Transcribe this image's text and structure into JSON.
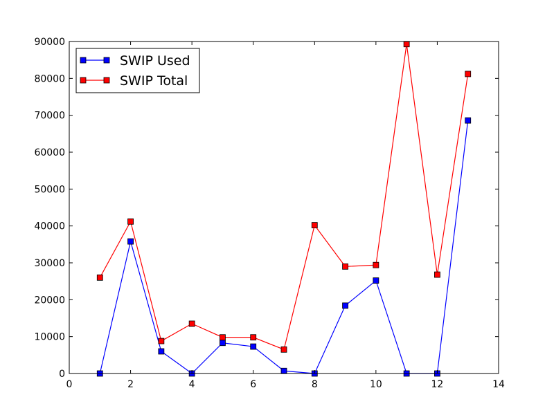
{
  "chart_data": {
    "type": "line",
    "title": "",
    "xlabel": "",
    "ylabel": "",
    "xlim": [
      0,
      14
    ],
    "ylim": [
      0,
      90000
    ],
    "xticks": [
      0,
      2,
      4,
      6,
      8,
      10,
      12,
      14
    ],
    "yticks": [
      0,
      10000,
      20000,
      30000,
      40000,
      50000,
      60000,
      70000,
      80000,
      90000
    ],
    "grid": false,
    "legend_position": "top-left",
    "x": [
      1,
      2,
      3,
      4,
      5,
      6,
      7,
      8,
      9,
      10,
      11,
      12,
      13
    ],
    "series": [
      {
        "name": "SWIP Used",
        "color": "#0000ff",
        "marker": "square",
        "values": [
          0,
          35800,
          6000,
          0,
          8300,
          7300,
          700,
          0,
          18400,
          25200,
          0,
          0,
          68600
        ]
      },
      {
        "name": "SWIP Total",
        "color": "#ff0000",
        "marker": "square",
        "values": [
          26000,
          41200,
          8800,
          13500,
          9800,
          9800,
          6500,
          40200,
          29000,
          29400,
          89300,
          26800,
          81200
        ]
      }
    ]
  }
}
